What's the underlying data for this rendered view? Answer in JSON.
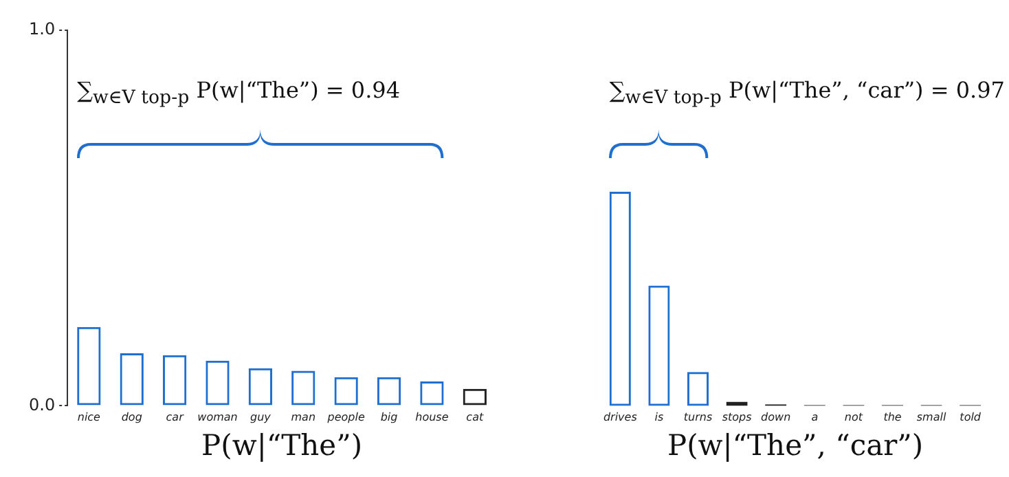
{
  "chart_data": [
    {
      "type": "bar",
      "categories": [
        "nice",
        "dog",
        "car",
        "woman",
        "guy",
        "man",
        "people",
        "big",
        "house",
        "cat"
      ],
      "values": [
        0.21,
        0.14,
        0.135,
        0.12,
        0.1,
        0.093,
        0.076,
        0.076,
        0.065,
        0.045
      ],
      "colors": [
        "#1f6fd1",
        "#1f6fd1",
        "#1f6fd1",
        "#1f6fd1",
        "#1f6fd1",
        "#1f6fd1",
        "#1f6fd1",
        "#1f6fd1",
        "#1f6fd1",
        "#222222"
      ],
      "xlabel": "P(w|“The”)",
      "annotations": [
        "∑$_{w∈V top-p}$ P(w|“The”) = 0.94"
      ],
      "ylim": [
        0,
        1
      ],
      "yticks": [
        {
          "value": 0,
          "label": "0.0"
        },
        {
          "value": 1,
          "label": "1.0"
        }
      ],
      "grid": false
    },
    {
      "type": "bar",
      "categories": [
        "drives",
        "is",
        "turns",
        "stops",
        "down",
        "a",
        "not",
        "the",
        "small",
        "told"
      ],
      "values": [
        0.57,
        0.32,
        0.09,
        0.011,
        0.004,
        0.002,
        0.002,
        0.002,
        0.002,
        0.002
      ],
      "colors": [
        "#1f6fd1",
        "#1f6fd1",
        "#1f6fd1",
        "#222222",
        "#222222",
        "#222222",
        "#222222",
        "#222222",
        "#222222",
        "#222222"
      ],
      "xlabel": "P(w|“The”, “car”)",
      "annotations": [
        "∑$_{w∈V top-p}$ P(w|“The”, “car”) = 0.97"
      ],
      "ylim": [
        0,
        1
      ],
      "tick_labels": "x",
      "grid": false
    }
  ]
}
